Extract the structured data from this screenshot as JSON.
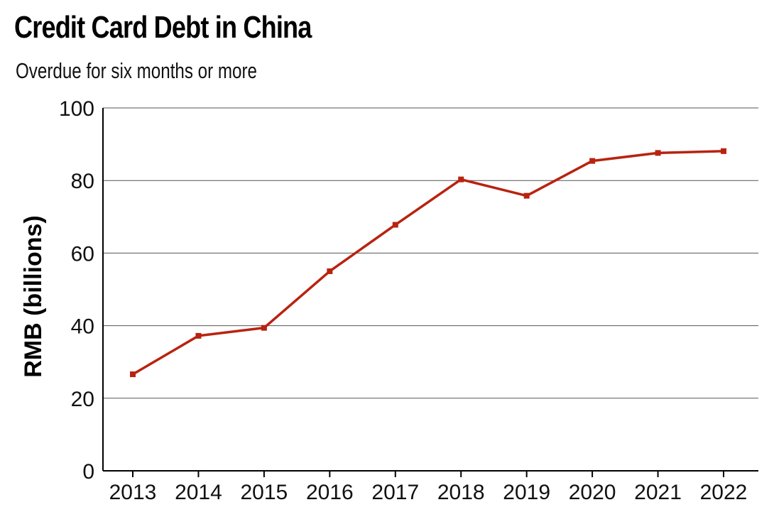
{
  "chart_data": {
    "type": "line",
    "title": "Credit Card Debt in China",
    "subtitle": "Overdue for six months or more",
    "xlabel": "",
    "ylabel": "RMB (billions)",
    "categories": [
      "2013",
      "2014",
      "2015",
      "2016",
      "2017",
      "2018",
      "2019",
      "2020",
      "2021",
      "2022"
    ],
    "series": [
      {
        "values": [
          26.6,
          37.2,
          39.4,
          55.0,
          67.8,
          80.3,
          75.8,
          85.4,
          87.6,
          88.1
        ]
      }
    ],
    "ylim": [
      0,
      100
    ],
    "yticks": [
      0,
      20,
      40,
      60,
      80,
      100
    ],
    "grid": "horizontal",
    "line_color": "#b8230f"
  }
}
